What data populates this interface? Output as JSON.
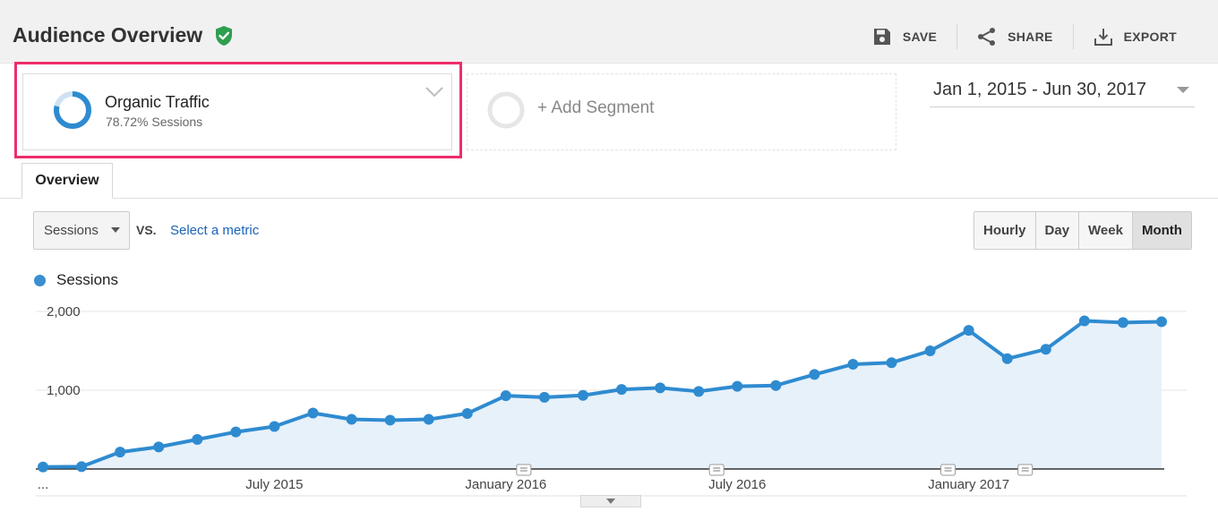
{
  "header": {
    "title": "Audience Overview",
    "actions": [
      {
        "label": "SAVE",
        "icon": "save-icon"
      },
      {
        "label": "SHARE",
        "icon": "share-icon"
      },
      {
        "label": "EXPORT",
        "icon": "export-icon"
      }
    ]
  },
  "segment": {
    "name": "Organic Traffic",
    "subtitle": "78.72% Sessions",
    "ring_fraction": 0.7872,
    "add_label": "+ Add Segment",
    "highlight_color": "#ee2d6a"
  },
  "date_range": "Jan 1, 2015 - Jun 30, 2017",
  "tabs": [
    {
      "label": "Overview",
      "active": true
    }
  ],
  "controls": {
    "metric": "Sessions",
    "vs": "VS.",
    "compare_link": "Select a metric",
    "granularity": [
      {
        "label": "Hourly",
        "active": false
      },
      {
        "label": "Day",
        "active": false
      },
      {
        "label": "Week",
        "active": false
      },
      {
        "label": "Month",
        "active": true
      }
    ]
  },
  "chart_data": {
    "type": "area",
    "series": [
      {
        "name": "Sessions",
        "color": "#2f8bd0",
        "values": [
          25,
          30,
          215,
          280,
          375,
          470,
          540,
          710,
          630,
          620,
          630,
          705,
          930,
          910,
          935,
          1010,
          1030,
          985,
          1050,
          1060,
          1200,
          1330,
          1350,
          1500,
          1760,
          1400,
          1520,
          1880,
          1860,
          1870
        ]
      }
    ],
    "x_start": "Jan 2015",
    "x_end": "Jun 2017",
    "x_tick_labels": [
      "...",
      "July 2015",
      "January 2016",
      "July 2016",
      "January 2017"
    ],
    "y_ticks": [
      "2,000",
      "1,000"
    ],
    "ylim": [
      0,
      2000
    ],
    "annotation_markers_at_month_index": [
      12,
      17,
      23,
      25
    ],
    "grid": true,
    "legend": "top-left"
  }
}
